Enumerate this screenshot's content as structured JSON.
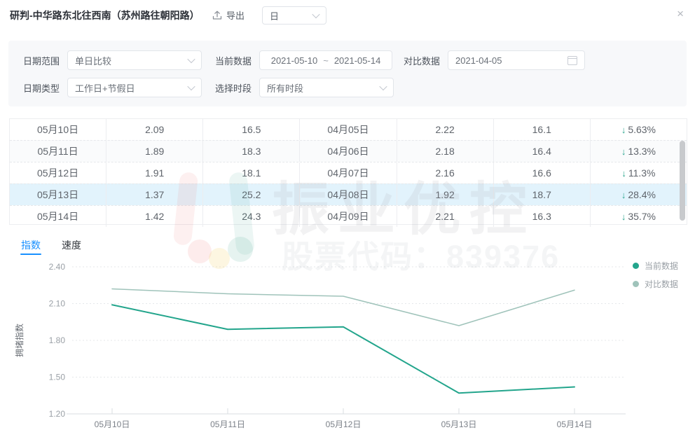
{
  "header": {
    "title": "研判-中华路东北往西南（苏州路往朝阳路）",
    "export_label": "导出",
    "interval_value": "日",
    "close_label": "×"
  },
  "filters": {
    "date_range": {
      "label": "日期范围",
      "value": "单日比较"
    },
    "current_data": {
      "label": "当前数据",
      "start": "2021-05-10",
      "separator": "~",
      "end": "2021-05-14"
    },
    "compare_data": {
      "label": "对比数据",
      "value": "2021-04-05"
    },
    "date_type": {
      "label": "日期类型",
      "value": "工作日+节假日"
    },
    "time_period": {
      "label": "选择时段",
      "value": "所有时段"
    }
  },
  "table": {
    "down_arrow": "↓",
    "highlighted_row": 3,
    "rows": [
      {
        "cells": [
          "05月10日",
          "2.09",
          "16.5",
          "04月05日",
          "2.22",
          "16.1"
        ],
        "trend": "down",
        "change": "5.63%"
      },
      {
        "cells": [
          "05月11日",
          "1.89",
          "18.3",
          "04月06日",
          "2.18",
          "16.4"
        ],
        "trend": "down",
        "change": "13.3%"
      },
      {
        "cells": [
          "05月12日",
          "1.91",
          "18.1",
          "04月07日",
          "2.16",
          "16.6"
        ],
        "trend": "down",
        "change": "11.3%"
      },
      {
        "cells": [
          "05月13日",
          "1.37",
          "25.2",
          "04月08日",
          "1.92",
          "18.7"
        ],
        "trend": "down",
        "change": "28.4%"
      },
      {
        "cells": [
          "05月14日",
          "1.42",
          "24.3",
          "04月09日",
          "2.21",
          "16.3"
        ],
        "trend": "down",
        "change": "35.7%"
      }
    ]
  },
  "tabs": [
    {
      "label": "指数",
      "active": true
    },
    {
      "label": "速度",
      "active": false
    }
  ],
  "watermark": {
    "brand": "振业优控",
    "stock": "股票代码：839376"
  },
  "icons": {
    "export": "upload-tray",
    "calendar": "calendar-outline",
    "chevron": "chevron-down",
    "close": "x"
  },
  "colors": {
    "accent_blue": "#1890ff",
    "series_current": "#23a58c",
    "series_compare": "#9fc3ba",
    "down_arrow": "#2ba58e",
    "row_highlight": "#e2f3fc"
  },
  "chart_data": {
    "type": "line",
    "title": "",
    "ylabel": "拥堵指数",
    "xlabel": "",
    "x": [
      "05月10日",
      "05月11日",
      "05月12日",
      "05月13日",
      "05月14日"
    ],
    "series": [
      {
        "name": "当前数据",
        "color": "#23a58c",
        "values": [
          2.09,
          1.89,
          1.91,
          1.37,
          1.42
        ]
      },
      {
        "name": "对比数据",
        "color": "#9fc3ba",
        "values": [
          2.22,
          2.18,
          2.16,
          1.92,
          2.21
        ]
      }
    ],
    "ylim": [
      1.2,
      2.4
    ],
    "yticks": [
      1.2,
      1.5,
      1.8,
      2.1,
      2.4
    ],
    "grid": "dashed-horizontal",
    "legend_position": "right"
  }
}
